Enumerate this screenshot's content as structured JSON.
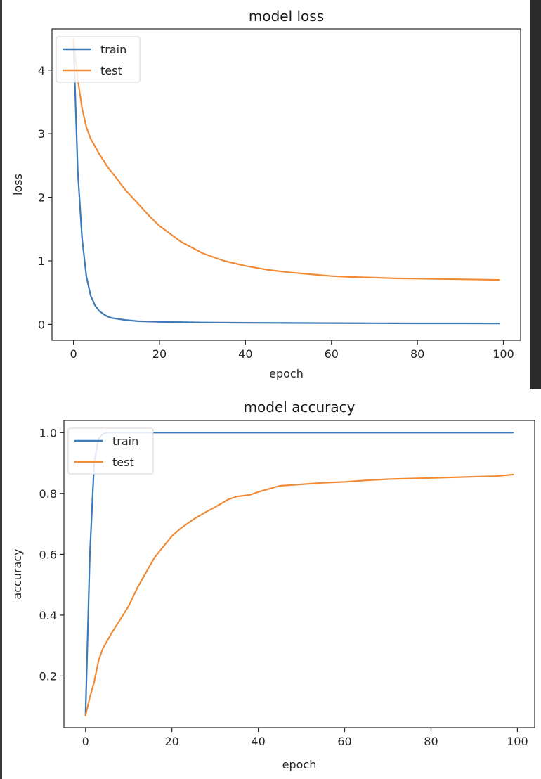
{
  "chart_data": [
    {
      "type": "line",
      "title": "model loss",
      "xlabel": "epoch",
      "ylabel": "loss",
      "xlim": [
        -5,
        104
      ],
      "ylim": [
        -0.25,
        4.65
      ],
      "xticks": [
        0,
        20,
        40,
        60,
        80,
        100
      ],
      "yticks": [
        0,
        1,
        2,
        3,
        4
      ],
      "xtick_labels": [
        "0",
        "20",
        "40",
        "60",
        "80",
        "100"
      ],
      "ytick_labels": [
        "0",
        "1",
        "2",
        "3",
        "4"
      ],
      "legend_placement": "upper left",
      "grid": false,
      "series": [
        {
          "name": "train",
          "color": "#3d7ab8",
          "x": [
            0,
            1,
            2,
            3,
            4,
            5,
            6,
            7,
            8,
            9,
            10,
            12,
            15,
            20,
            25,
            30,
            40,
            50,
            60,
            70,
            80,
            90,
            99
          ],
          "y": [
            4.45,
            2.4,
            1.35,
            0.75,
            0.45,
            0.3,
            0.21,
            0.16,
            0.12,
            0.1,
            0.09,
            0.07,
            0.05,
            0.04,
            0.035,
            0.03,
            0.025,
            0.022,
            0.02,
            0.018,
            0.016,
            0.015,
            0.014
          ]
        },
        {
          "name": "test",
          "color": "#f08b37",
          "x": [
            0,
            1,
            2,
            3,
            4,
            6,
            8,
            10,
            12,
            15,
            18,
            20,
            25,
            30,
            35,
            40,
            45,
            50,
            55,
            60,
            65,
            70,
            75,
            80,
            85,
            90,
            95,
            99
          ],
          "y": [
            4.5,
            3.85,
            3.4,
            3.1,
            2.92,
            2.68,
            2.47,
            2.3,
            2.12,
            1.9,
            1.68,
            1.55,
            1.3,
            1.12,
            1.0,
            0.92,
            0.86,
            0.82,
            0.79,
            0.76,
            0.745,
            0.735,
            0.725,
            0.72,
            0.715,
            0.71,
            0.705,
            0.7
          ]
        }
      ]
    },
    {
      "type": "line",
      "title": "model accuracy",
      "xlabel": "epoch",
      "ylabel": "accuracy",
      "xlim": [
        -5,
        104
      ],
      "ylim": [
        0.03,
        1.04
      ],
      "xticks": [
        0,
        20,
        40,
        60,
        80,
        100
      ],
      "yticks": [
        0.2,
        0.4,
        0.6,
        0.8,
        1.0
      ],
      "xtick_labels": [
        "0",
        "20",
        "40",
        "60",
        "80",
        "100"
      ],
      "ytick_labels": [
        "0.2",
        "0.4",
        "0.6",
        "0.8",
        "1.0"
      ],
      "legend_placement": "upper left",
      "grid": false,
      "series": [
        {
          "name": "train",
          "color": "#3d7ab8",
          "x": [
            0,
            1,
            2,
            3,
            4,
            5,
            6,
            10,
            20,
            40,
            60,
            80,
            99
          ],
          "y": [
            0.07,
            0.6,
            0.9,
            0.98,
            0.995,
            1.0,
            1.0,
            1.0,
            1.0,
            1.0,
            1.0,
            1.0,
            1.0
          ]
        },
        {
          "name": "test",
          "color": "#f08b37",
          "x": [
            0,
            1,
            2,
            3,
            4,
            6,
            8,
            10,
            12,
            14,
            16,
            18,
            20,
            22,
            25,
            28,
            30,
            33,
            35,
            38,
            40,
            45,
            50,
            55,
            60,
            65,
            70,
            80,
            90,
            95,
            99
          ],
          "y": [
            0.07,
            0.13,
            0.18,
            0.25,
            0.29,
            0.34,
            0.385,
            0.43,
            0.49,
            0.54,
            0.59,
            0.625,
            0.66,
            0.685,
            0.715,
            0.74,
            0.755,
            0.78,
            0.79,
            0.795,
            0.805,
            0.825,
            0.83,
            0.835,
            0.838,
            0.843,
            0.847,
            0.851,
            0.855,
            0.857,
            0.862
          ]
        }
      ]
    }
  ]
}
